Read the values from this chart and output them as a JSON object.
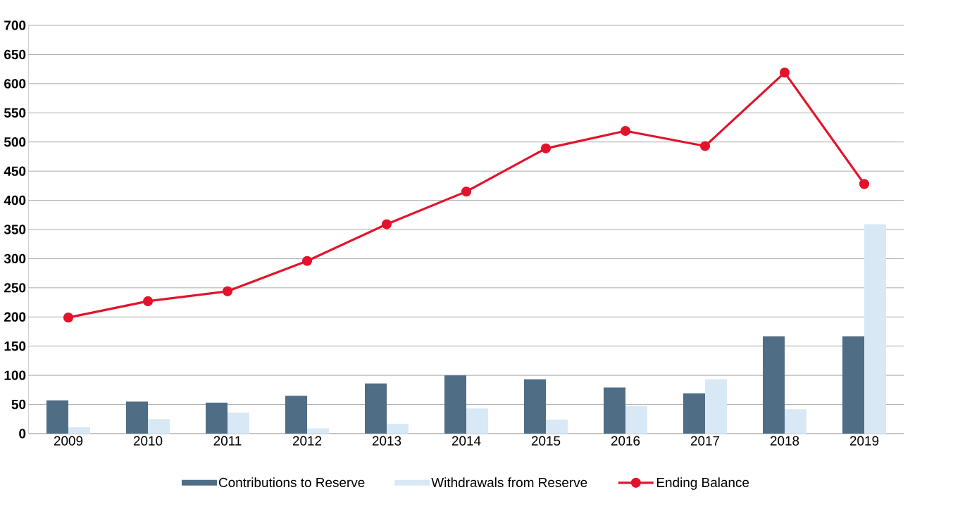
{
  "chart_data": {
    "type": "bar",
    "categories": [
      "2009",
      "2010",
      "2011",
      "2012",
      "2013",
      "2014",
      "2015",
      "2016",
      "2017",
      "2018",
      "2019"
    ],
    "series": [
      {
        "name": "Contributions to Reserve",
        "color": "#4f6d85",
        "values": [
          57,
          55,
          53,
          65,
          86,
          100,
          93,
          79,
          69,
          167,
          167
        ]
      },
      {
        "name": "Withdrawals from Reserve",
        "color": "#d8e9f5",
        "values": [
          11,
          25,
          36,
          9,
          17,
          43,
          24,
          47,
          93,
          42,
          359
        ]
      },
      {
        "name": "Ending Balance",
        "type": "line",
        "color": "#e3132b",
        "values": [
          199,
          227,
          244,
          296,
          359,
          415,
          489,
          519,
          493,
          619,
          428
        ]
      }
    ],
    "ylim": [
      0,
      700
    ],
    "yticks": [
      0,
      50,
      100,
      150,
      200,
      250,
      300,
      350,
      400,
      450,
      500,
      550,
      600,
      650,
      700
    ],
    "grid": "y",
    "legend": "bottom",
    "marker": "circle",
    "line_style": "solid"
  }
}
